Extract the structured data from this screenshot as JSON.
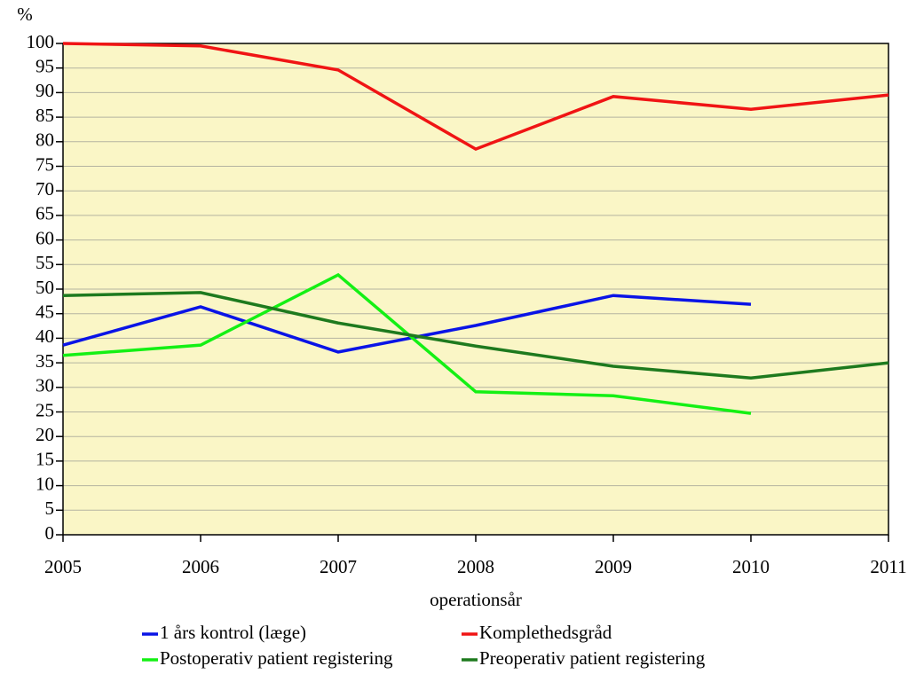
{
  "chart_data": {
    "type": "line",
    "y_label": "%",
    "x_label": "operationsår",
    "x": [
      2005,
      2006,
      2007,
      2008,
      2009,
      2010,
      2011
    ],
    "xlim": [
      2005,
      2011
    ],
    "xticks": [
      2005,
      2006,
      2007,
      2008,
      2009,
      2010,
      2011
    ],
    "ylim": [
      0,
      100
    ],
    "yticks": [
      0,
      5,
      10,
      15,
      20,
      25,
      30,
      35,
      40,
      45,
      50,
      55,
      60,
      65,
      70,
      75,
      80,
      85,
      90,
      95,
      100
    ],
    "grid": true,
    "background": "#faf6c6",
    "legend": "bottom",
    "series": [
      {
        "name": "1 års kontrol (læge)",
        "color": "#0a14e6",
        "values": [
          38.6,
          46.4,
          37.2,
          42.6,
          48.7,
          46.9,
          null
        ]
      },
      {
        "name": "Komplethedsgråd",
        "color": "#f01414",
        "values": [
          100,
          99.5,
          94.6,
          78.5,
          89.2,
          86.6,
          89.5
        ]
      },
      {
        "name": "Postoperativ patient registering",
        "color": "#14f014",
        "values": [
          36.5,
          38.6,
          52.9,
          29.1,
          28.3,
          24.7,
          null
        ]
      },
      {
        "name": "Preoperativ patient registering",
        "color": "#1e7a1e",
        "values": [
          48.7,
          49.3,
          43.1,
          38.4,
          34.3,
          31.9,
          35.0
        ]
      }
    ]
  }
}
